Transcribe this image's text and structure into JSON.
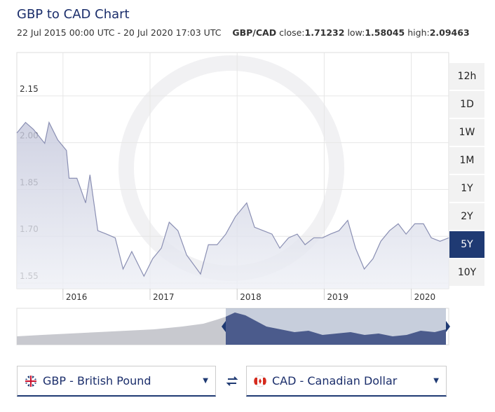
{
  "chart_data": {
    "type": "line",
    "title": "GBP to CAD Chart",
    "subtitle": "22 Jul 2015 00:00 UTC - 20 Jul 2020 17:03 UTC",
    "pair": "GBP/CAD",
    "stats": [
      {
        "label": "close:",
        "value": "1.71232"
      },
      {
        "label": "low:",
        "value": "1.58045"
      },
      {
        "label": "high:",
        "value": "2.09463"
      }
    ],
    "x": [
      2015.47,
      2015.57,
      2015.66,
      2015.79,
      2015.84,
      2015.94,
      2016.04,
      2016.07,
      2016.16,
      2016.26,
      2016.31,
      2016.4,
      2016.5,
      2016.6,
      2016.69,
      2016.79,
      2016.93,
      2017.03,
      2017.13,
      2017.22,
      2017.32,
      2017.42,
      2017.58,
      2017.67,
      2017.77,
      2017.87,
      2017.98,
      2018.11,
      2018.2,
      2018.3,
      2018.4,
      2018.49,
      2018.59,
      2018.69,
      2018.78,
      2018.88,
      2018.98,
      2019.07,
      2019.17,
      2019.27,
      2019.36,
      2019.46,
      2019.56,
      2019.65,
      2019.75,
      2019.85,
      2019.94,
      2020.04,
      2020.14,
      2020.23,
      2020.33,
      2020.43
    ],
    "series": [
      {
        "color": "#8a8fb3",
        "values": [
          2.031,
          2.065,
          2.043,
          1.998,
          2.065,
          2.009,
          1.975,
          1.886,
          1.886,
          1.807,
          1.897,
          1.718,
          1.707,
          1.695,
          1.595,
          1.651,
          1.572,
          1.628,
          1.662,
          1.745,
          1.718,
          1.64,
          1.579,
          1.673,
          1.673,
          1.707,
          1.763,
          1.807,
          1.729,
          1.718,
          1.707,
          1.662,
          1.695,
          1.707,
          1.673,
          1.695,
          1.695,
          1.707,
          1.718,
          1.751,
          1.662,
          1.595,
          1.628,
          1.684,
          1.718,
          1.74,
          1.707,
          1.74,
          1.74,
          1.695,
          1.684,
          1.695
        ]
      }
    ],
    "xlim": [
      2015.47,
      2020.43
    ],
    "xticks": [
      2016,
      2017,
      2018,
      2019,
      2020
    ],
    "ylim": [
      1.532,
      2.289
    ],
    "yticks": [
      1.55,
      {
        "value": 1.7,
        "label": "1.70"
      },
      1.85,
      {
        "value": 2,
        "label": "2.00"
      },
      2.15
    ],
    "grid": true
  },
  "ranges": [
    "12h",
    "1D",
    "1W",
    "1M",
    "1Y",
    "2Y",
    "5Y",
    "10Y"
  ],
  "active_range": 6,
  "from_currency": "GBP - British Pound",
  "to_currency": "CAD - Canadian Dollar"
}
